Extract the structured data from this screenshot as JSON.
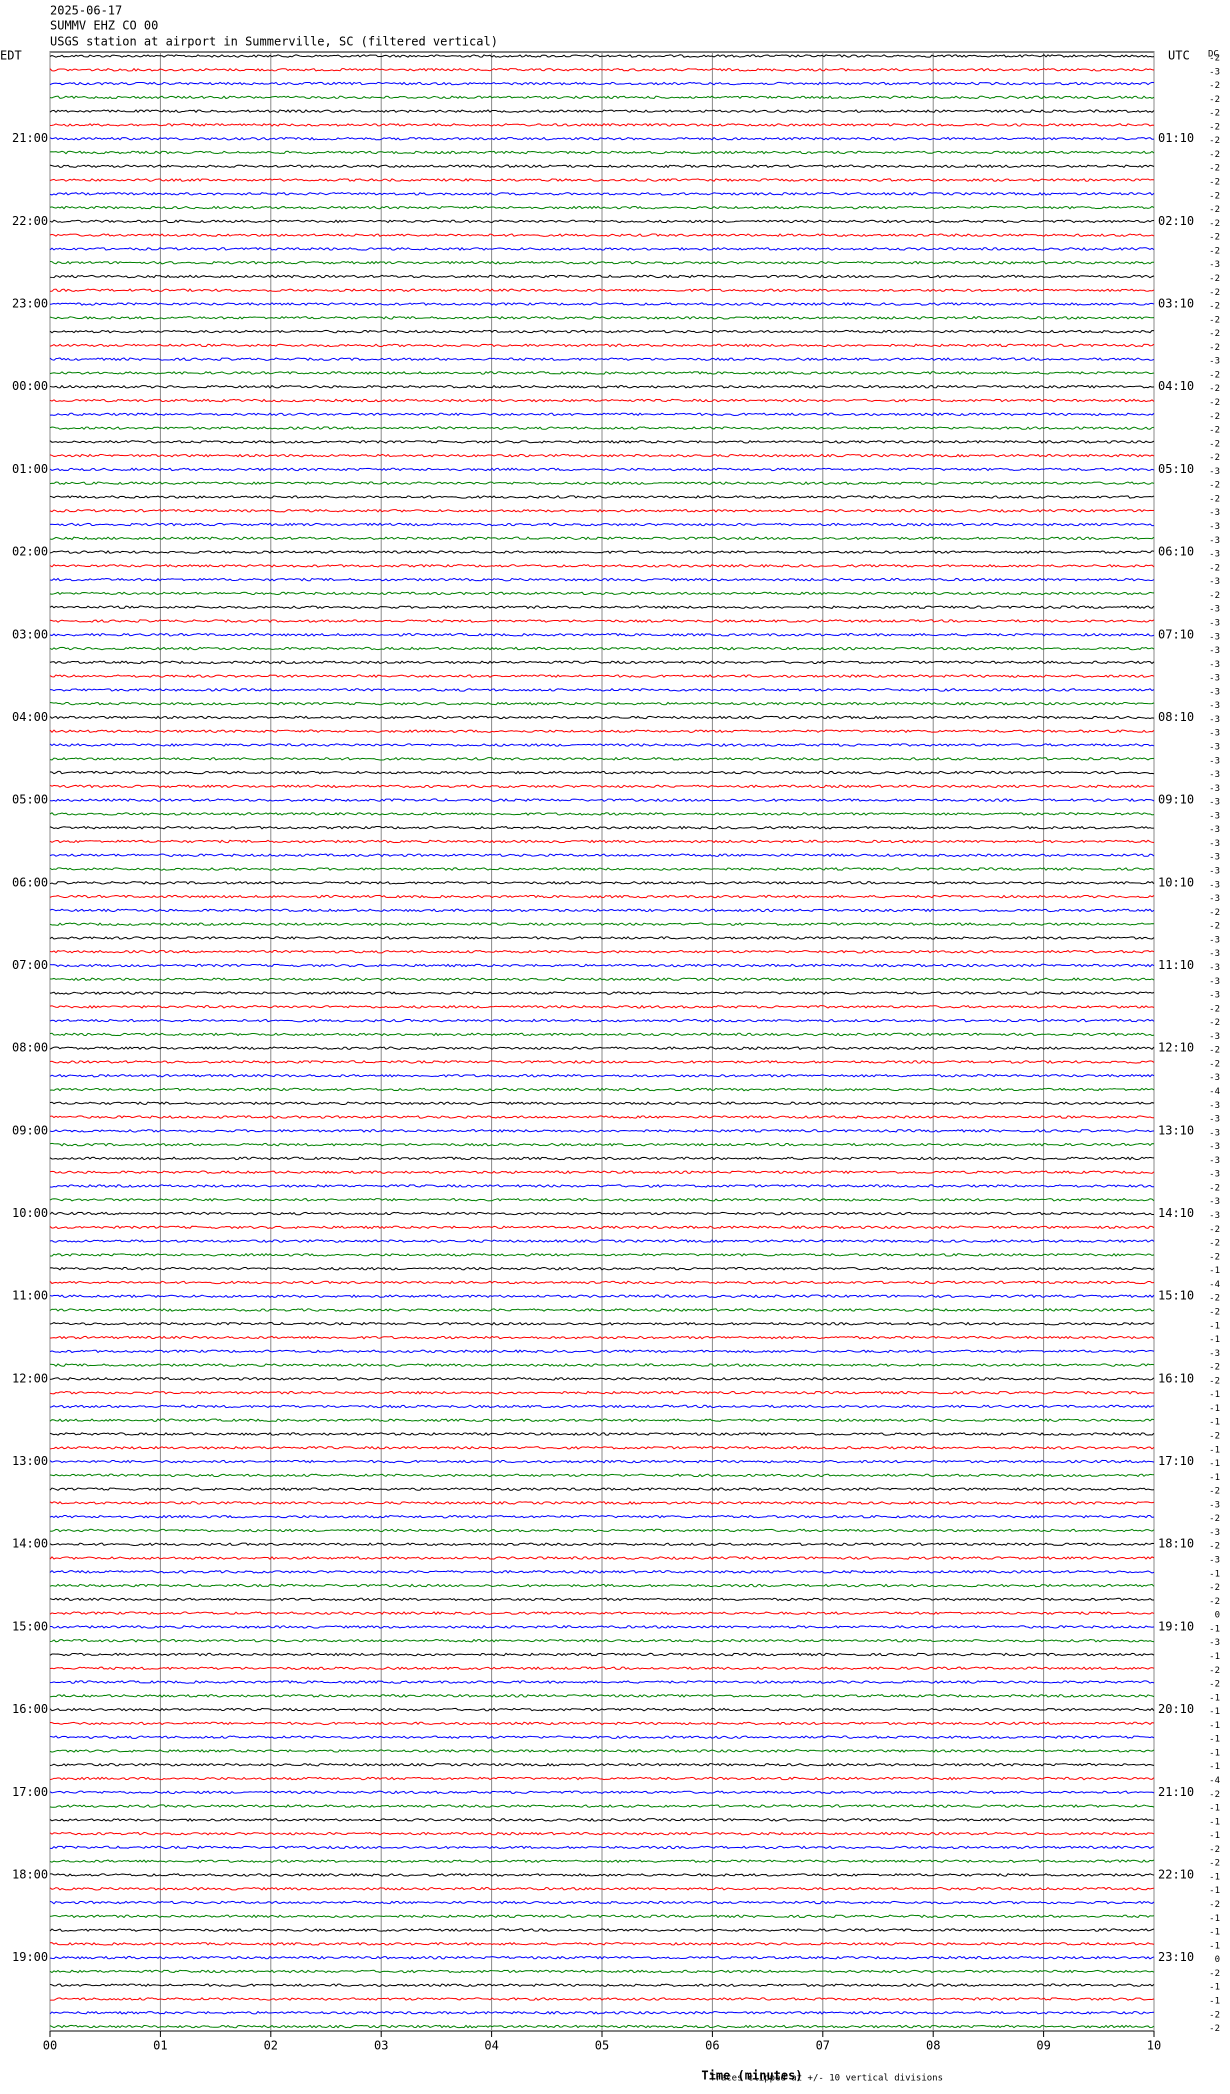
{
  "chart_data": {
    "type": "helicorder",
    "header": [
      "2025-06-17",
      "SUMMV EHZ CO 00",
      "USGS station at airport in Summerville, SC (filtered vertical)"
    ],
    "left_zone": "EDT",
    "right_zone": "UTC",
    "offset_title": "DC",
    "left_labels": [
      "21:00",
      "22:00",
      "23:00",
      "00:00",
      "01:00",
      "02:00",
      "03:00",
      "04:00",
      "05:00",
      "06:00",
      "07:00",
      "08:00",
      "09:00",
      "10:00",
      "11:00",
      "12:00",
      "13:00",
      "14:00",
      "15:00",
      "16:00",
      "17:00",
      "18:00",
      "19:00"
    ],
    "right_labels": [
      "01:10",
      "02:10",
      "03:10",
      "04:10",
      "05:10",
      "06:10",
      "07:10",
      "08:10",
      "09:10",
      "10:10",
      "11:10",
      "12:10",
      "13:10",
      "14:10",
      "15:10",
      "16:10",
      "17:10",
      "18:10",
      "19:10",
      "20:10",
      "21:10",
      "22:10",
      "23:10"
    ],
    "trace_colors": [
      "#000000",
      "#ff0000",
      "#0000ff",
      "#008000"
    ],
    "offsets": [
      -2,
      -3,
      -2,
      -2,
      -2,
      -2,
      -2,
      -2,
      -2,
      -2,
      -2,
      -2,
      -2,
      -2,
      -2,
      -3,
      -2,
      -2,
      -2,
      -2,
      -2,
      -2,
      -3,
      -2,
      -2,
      -2,
      -2,
      -2,
      -2,
      -2,
      -3,
      -2,
      -2,
      -3,
      -3,
      -3,
      -3,
      -2,
      -3,
      -2,
      -3,
      -3,
      -3,
      -3,
      -3,
      -3,
      -3,
      -3,
      -3,
      -3,
      -3,
      -3,
      -3,
      -3,
      -3,
      -3,
      -3,
      -3,
      -3,
      -3,
      -3,
      -3,
      -2,
      -2,
      -3,
      -3,
      -3,
      -3,
      -3,
      -2,
      -2,
      -3,
      -2,
      -2,
      -3,
      -4,
      -3,
      -3,
      -3,
      -3,
      -3,
      -3,
      -2,
      -3,
      -3,
      -2,
      -2,
      -2,
      -1,
      -4,
      -2,
      -2,
      -1,
      -1,
      -3,
      -2,
      -2,
      -1,
      -1,
      -1,
      -2,
      -1,
      -1,
      -1,
      -2,
      -3,
      -2,
      -3,
      -2,
      -3,
      -1,
      -2,
      -2,
      0,
      -1,
      -3,
      -1,
      -2,
      -2,
      -1,
      -1,
      -1,
      -1,
      -1,
      -1,
      -4,
      -2,
      -1,
      -1,
      -1,
      -2,
      -2,
      -1,
      -1,
      -2,
      -1,
      -1,
      -1,
      0,
      -2,
      -1,
      -1,
      -2,
      -2
    ],
    "xlim": [
      0,
      10
    ],
    "xticks": [
      {
        "value": 0,
        "label": "00"
      },
      {
        "value": 1,
        "label": "01"
      },
      {
        "value": 2,
        "label": "02"
      },
      {
        "value": 3,
        "label": "03"
      },
      {
        "value": 4,
        "label": "04"
      },
      {
        "value": 5,
        "label": "05"
      },
      {
        "value": 6,
        "label": "06"
      },
      {
        "value": 7,
        "label": "07"
      },
      {
        "value": 8,
        "label": "08"
      },
      {
        "value": 9,
        "label": "09"
      },
      {
        "value": 10,
        "label": "10"
      }
    ],
    "x_label": "Time (minutes)",
    "note": "Traces clipped at +/- 10 vertical divisions"
  }
}
